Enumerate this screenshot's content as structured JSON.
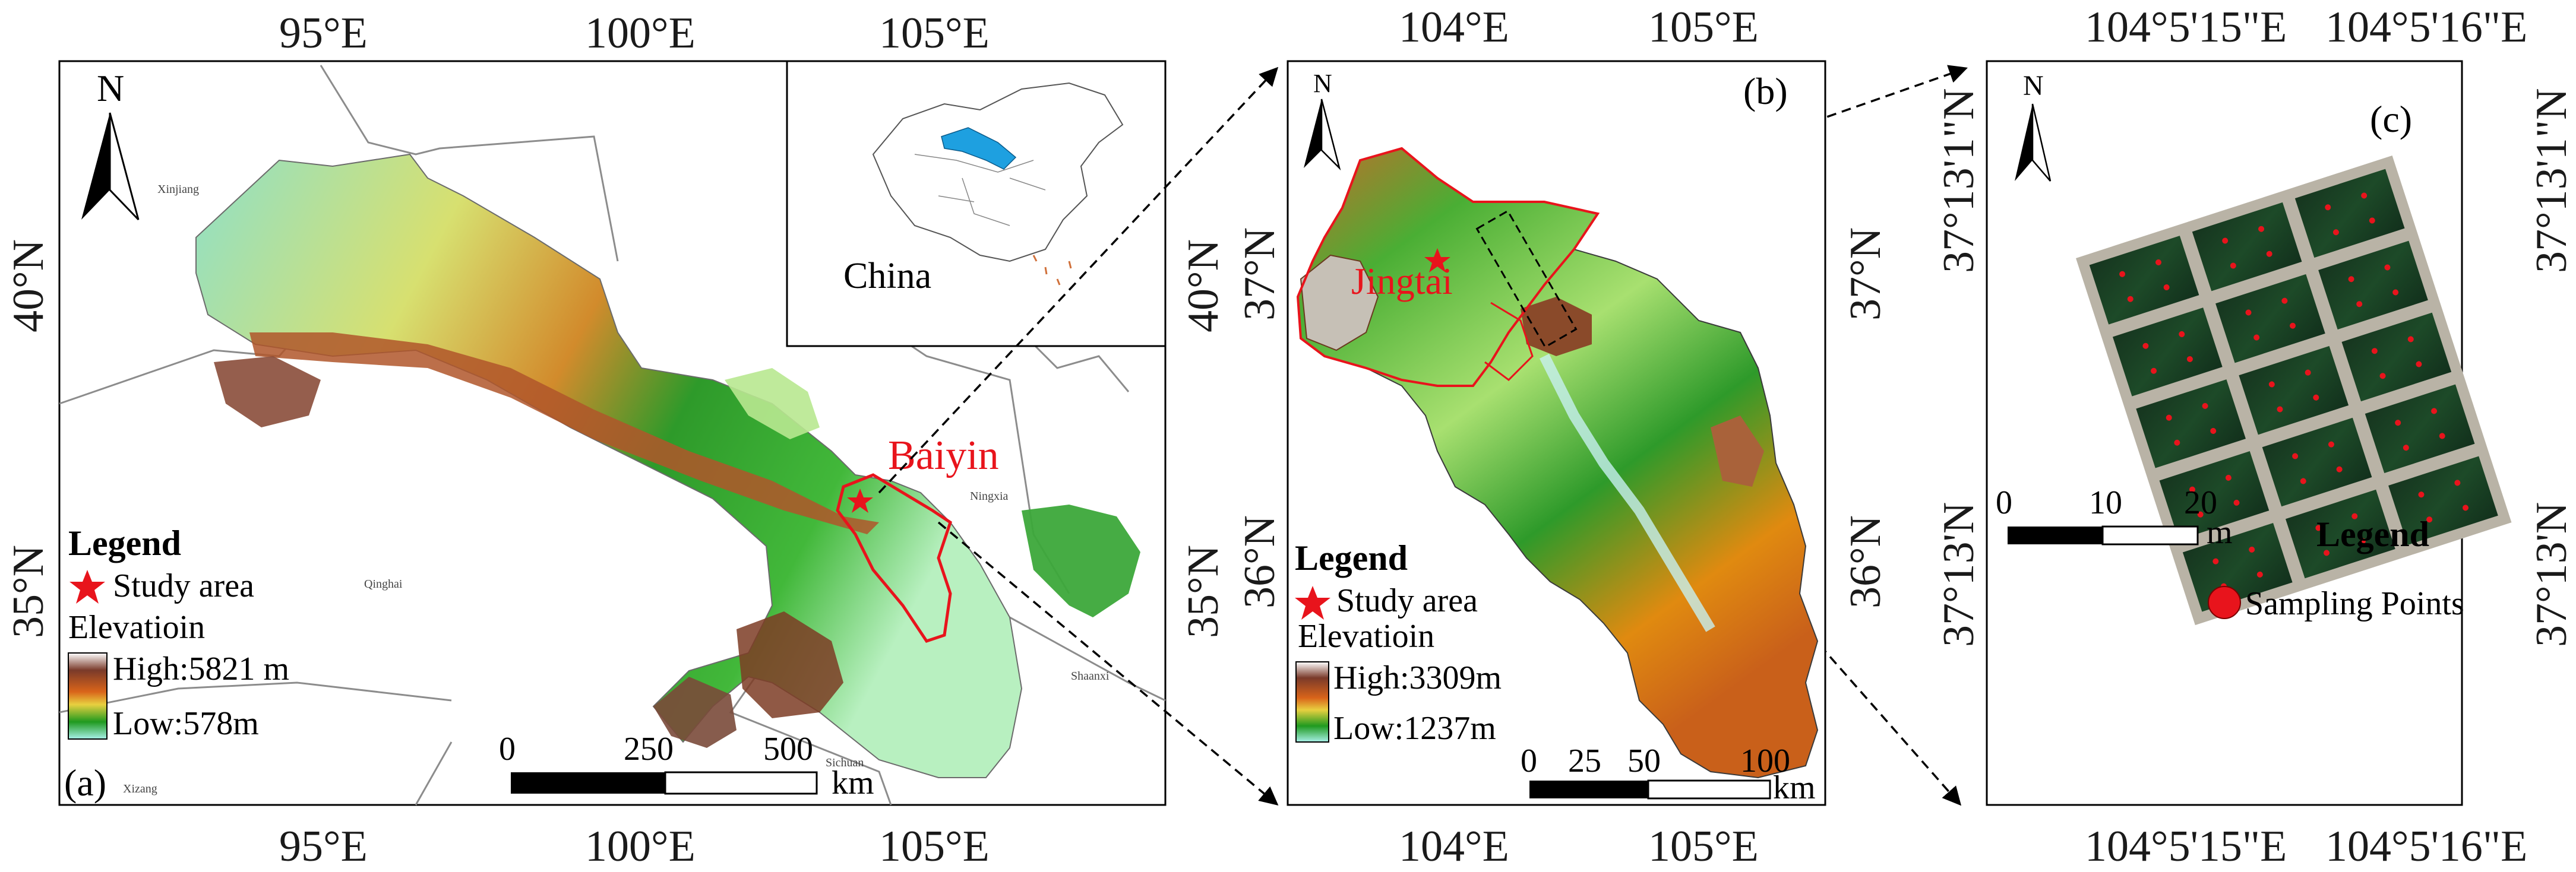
{
  "panels": {
    "a": {
      "label": "(a)",
      "top_ticks": [
        "95°E",
        "100°E",
        "105°E"
      ],
      "bottom_ticks": [
        "95°E",
        "100°E",
        "105°E"
      ],
      "left_ticks": [
        "40°N",
        "35°N"
      ],
      "right_ticks": [
        "40°N",
        "35°N"
      ],
      "north_letter": "N",
      "region_labels": [
        "Xinjiang",
        "Qinghai",
        "Ningxia",
        "Shaanxi",
        "Sichuan",
        "Xizang"
      ],
      "highlight_label": "Baiyin",
      "inset_label": "China",
      "legend": {
        "title": "Legend",
        "star_text": "Study area",
        "elev_title": "Elevatioin",
        "high": "High:5821 m",
        "low": "Low:578m"
      },
      "scale": {
        "ticks": [
          "0",
          "250",
          "500"
        ],
        "unit": "km"
      }
    },
    "b": {
      "label": "(b)",
      "top_ticks": [
        "104°E",
        "105°E"
      ],
      "bottom_ticks": [
        "104°E",
        "105°E"
      ],
      "left_ticks": [
        "37°N",
        "36°N"
      ],
      "right_ticks": [
        "37°N",
        "36°N"
      ],
      "north_letter": "N",
      "place_label": "Jingtai",
      "legend": {
        "title": "Legend",
        "star_text": "Study area",
        "elev_title": "Elevatioin",
        "high": "High:3309m",
        "low": "Low:1237m"
      },
      "scale": {
        "ticks": [
          "0",
          "25",
          "50",
          "100"
        ],
        "unit": "km"
      }
    },
    "c": {
      "label": "(c)",
      "top_ticks": [
        "104°5'15\"E",
        "104°5'16\"E"
      ],
      "bottom_ticks": [
        "104°5'15\"E",
        "104°5'16\"E"
      ],
      "left_ticks": [
        "37°13'1\"N",
        "37°13'N"
      ],
      "right_ticks": [
        "37°13'1\"N",
        "37°13'N"
      ],
      "north_letter": "N",
      "legend": {
        "title": "Legend",
        "point_text": "Sampling Points"
      },
      "scale": {
        "ticks": [
          "0",
          "10",
          "20"
        ],
        "unit": "m"
      }
    }
  },
  "colors": {
    "highlight_red": "#e8141c",
    "star_red": "#e8141c",
    "inset_province_blue": "#1ea0e0",
    "elev_high": "#ffffff",
    "elev_mid_brown": "#8b3a1a",
    "elev_orange": "#e08a10",
    "elev_green": "#1f9a1f",
    "elev_low_cyan": "#9fe8e8"
  },
  "icons": [
    "north-arrow-icon",
    "star-icon",
    "sampling-point-icon"
  ]
}
